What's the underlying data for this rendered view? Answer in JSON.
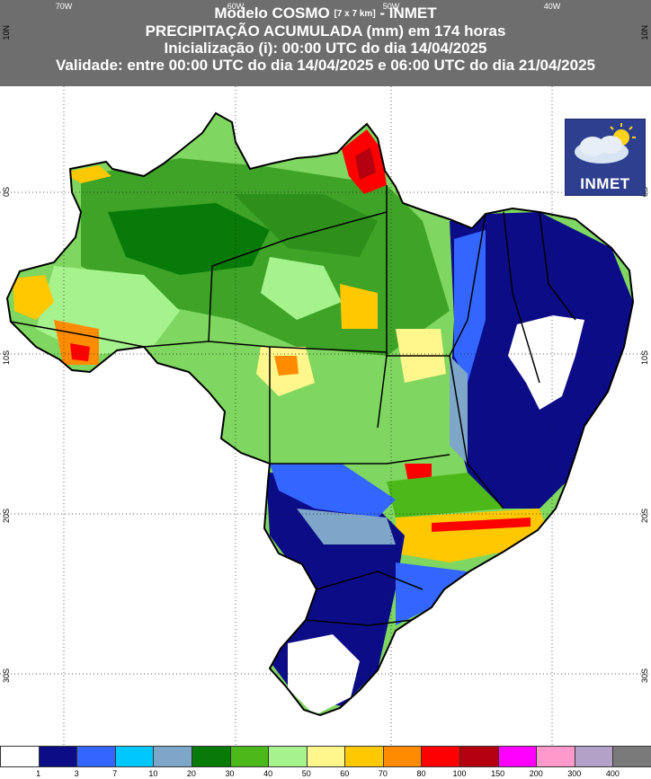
{
  "header": {
    "title_main": "Modelo COSMO",
    "title_res": "[7 x 7 km]",
    "title_org": "- INMET",
    "line2": "PRECIPITAÇÃO ACUMULADA (mm) em 174 horas",
    "line3": "Inicialização (i): 00:00 UTC do dia 14/04/2025",
    "line4": "Validade: entre 00:00 UTC do dia 14/04/2025 e 06:00 UTC do dia 21/04/2025"
  },
  "axes": {
    "lon_labels": [
      "70W",
      "60W",
      "50W",
      "40W"
    ],
    "lat_labels_left": [
      "10N",
      "0S",
      "10S",
      "20S",
      "30S"
    ],
    "lat_labels_right": [
      "10N",
      "0S",
      "10S",
      "20S",
      "30S"
    ]
  },
  "logo": {
    "text": "INMET",
    "icon": "sun-cloud-icon"
  },
  "legend": {
    "colors": [
      "#ffffff",
      "#0c0c87",
      "#3366ff",
      "#00c8ff",
      "#7ea6c8",
      "#087a08",
      "#4db81a",
      "#a6f28c",
      "#fff78c",
      "#ffc800",
      "#ff8c00",
      "#ff0000",
      "#b4000f",
      "#ff00ff",
      "#ff99cc",
      "#b3a1c7",
      "#7a7a7a"
    ],
    "ticks": [
      "1",
      "3",
      "7",
      "10",
      "20",
      "30",
      "40",
      "50",
      "60",
      "70",
      "80",
      "100",
      "150",
      "200",
      "300",
      "400"
    ]
  }
}
